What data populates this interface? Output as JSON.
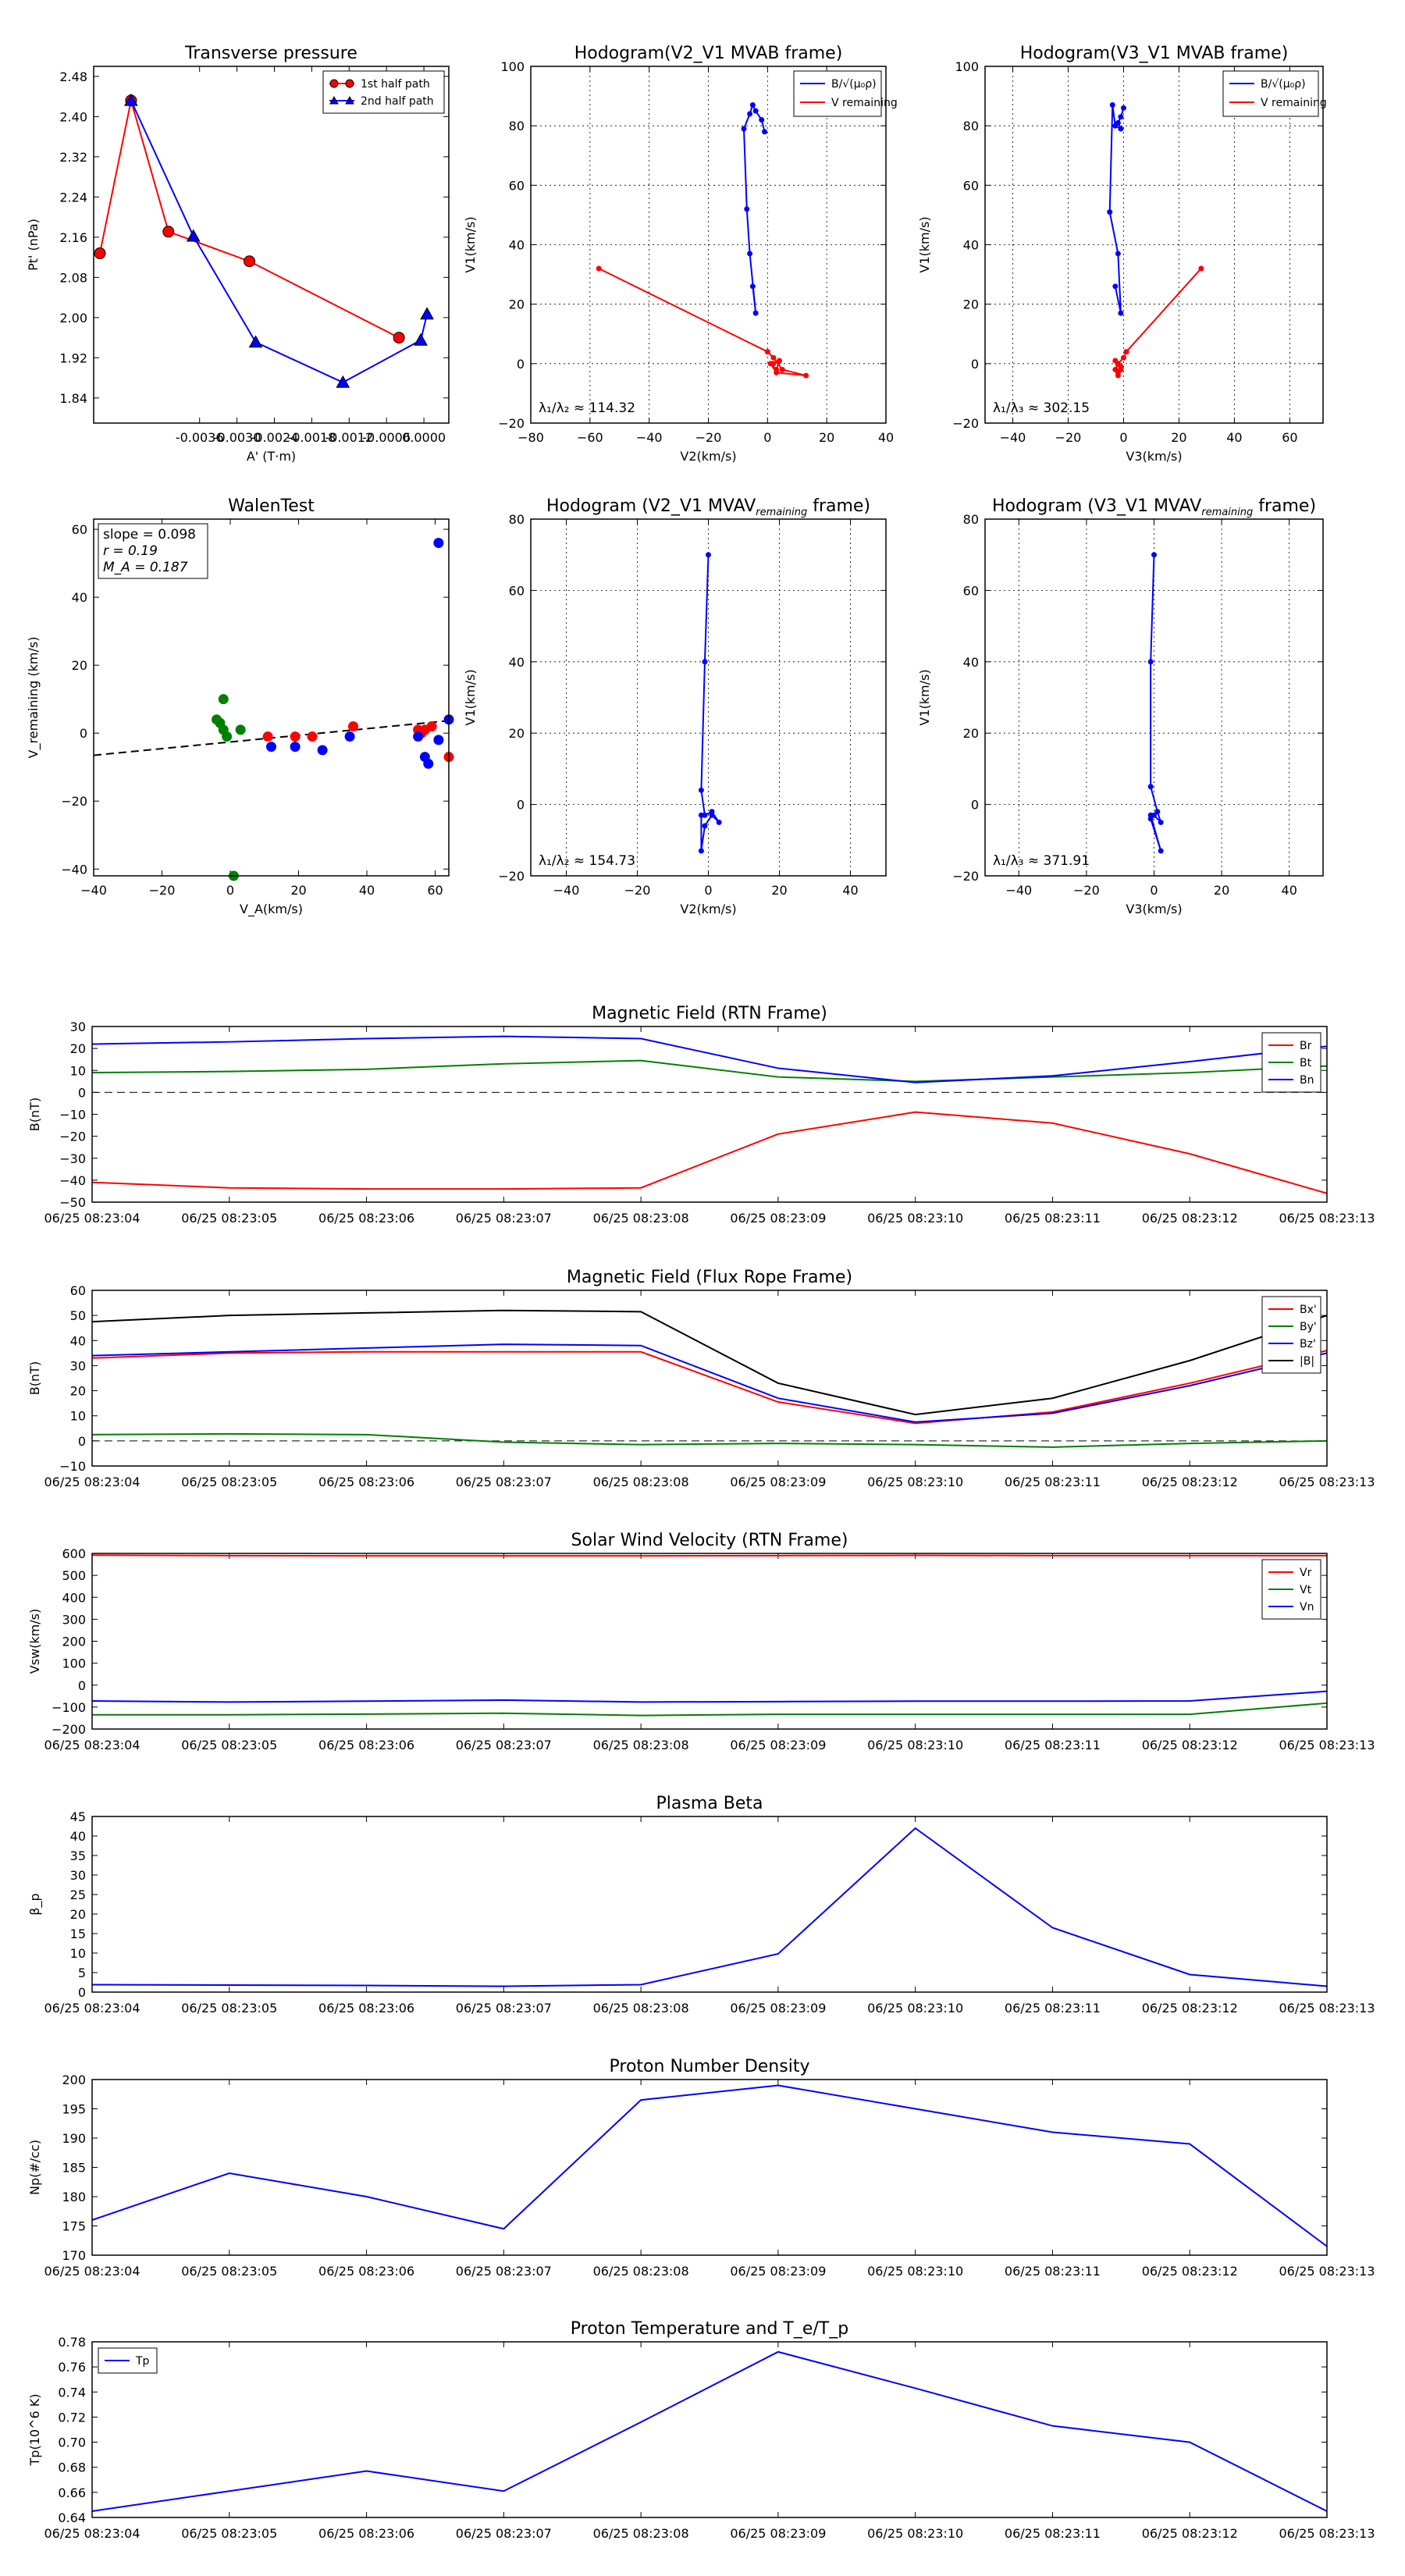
{
  "chart_data": [
    {
      "id": "transverse_pressure",
      "type": "line",
      "title": "Transverse pressure",
      "xlabel": "A' (T·m)",
      "ylabel": "Pt' (nPa)",
      "xlim": [
        -0.0053,
        0.0004
      ],
      "ylim": [
        1.79,
        2.5
      ],
      "xticks": [
        -0.0036,
        -0.003,
        -0.0024,
        -0.0018,
        -0.0012,
        -0.0006,
        0.0
      ],
      "xtick_labels": [
        "-0.0036",
        "-0.0030",
        "-0.0024",
        "-0.0018",
        "-0.0012",
        "-0.0006",
        "0.0000"
      ],
      "yticks": [
        1.84,
        1.92,
        2.0,
        2.08,
        2.16,
        2.24,
        2.32,
        2.4,
        2.48
      ],
      "ytick_labels": [
        "1.84",
        "1.92",
        "2.00",
        "2.08",
        "2.16",
        "2.24",
        "2.32",
        "2.40",
        "2.48"
      ],
      "legend": "top-right",
      "series": [
        {
          "name": "1st half path",
          "color": "#ff0000",
          "marker": "circle",
          "x": [
            -0.0052,
            -0.0047,
            -0.0041,
            -0.0028,
            -0.0004
          ],
          "y": [
            2.128,
            2.432,
            2.171,
            2.112,
            1.96
          ]
        },
        {
          "name": "2nd half path",
          "color": "#0000ff",
          "marker": "triangle",
          "x": [
            -0.0047,
            -0.0037,
            -0.0027,
            -0.0013,
            -5e-05,
            5e-05
          ],
          "y": [
            2.432,
            2.162,
            1.951,
            1.871,
            1.955,
            2.007
          ]
        }
      ]
    },
    {
      "id": "hodogram_v2_v1_mvab",
      "type": "line",
      "title": "Hodogram(V2_V1 MVAB frame)",
      "xlabel": "V2(km/s)",
      "ylabel": "V1(km/s)",
      "xlim": [
        -80,
        40
      ],
      "ylim": [
        -20,
        100
      ],
      "xticks": [
        -80,
        -60,
        -40,
        -20,
        0,
        20,
        40
      ],
      "xtick_labels": [
        "−80",
        "−60",
        "−40",
        "−20",
        "0",
        "20",
        "40"
      ],
      "yticks": [
        -20,
        0,
        20,
        40,
        60,
        80,
        100
      ],
      "ytick_labels": [
        "−20",
        "0",
        "20",
        "40",
        "60",
        "80",
        "100"
      ],
      "grid": true,
      "legend": "top-right",
      "annotation": "λ₁/λ₂ ≈ 114.32",
      "series": [
        {
          "name": "B/√(μ₀ρ)",
          "color": "#0000ff",
          "x": [
            -1,
            -2,
            -4,
            -5,
            -6,
            -8,
            -7,
            -6,
            -4,
            -5
          ],
          "y": [
            78,
            82,
            85,
            87,
            84,
            79,
            52,
            37,
            17,
            26
          ]
        },
        {
          "name": "V remaining",
          "color": "#ff0000",
          "x": [
            -57,
            0,
            2,
            5,
            13,
            3,
            1,
            3,
            4,
            2
          ],
          "y": [
            32,
            4,
            2,
            -2,
            -4,
            -3,
            0,
            -2,
            1,
            0
          ]
        }
      ]
    },
    {
      "id": "hodogram_v3_v1_mvab",
      "type": "line",
      "title": "Hodogram(V3_V1 MVAB frame)",
      "xlabel": "V3(km/s)",
      "ylabel": "V1(km/s)",
      "xlim": [
        -50,
        72
      ],
      "ylim": [
        -20,
        100
      ],
      "xticks": [
        -40,
        -20,
        0,
        20,
        40,
        60
      ],
      "xtick_labels": [
        "−40",
        "−20",
        "0",
        "20",
        "40",
        "60"
      ],
      "yticks": [
        -20,
        0,
        20,
        40,
        60,
        80,
        100
      ],
      "ytick_labels": [
        "−20",
        "0",
        "20",
        "40",
        "60",
        "80",
        "100"
      ],
      "grid": true,
      "legend": "top-right",
      "annotation": "λ₁/λ₃ ≈ 302.15",
      "series": [
        {
          "name": "B/√(μ₀ρ)",
          "color": "#0000ff",
          "x": [
            0,
            -1,
            -2,
            -1,
            -3,
            -4,
            -5,
            -2,
            -1,
            -3
          ],
          "y": [
            86,
            83,
            81,
            79,
            80,
            87,
            51,
            37,
            17,
            26
          ]
        },
        {
          "name": "V remaining",
          "color": "#ff0000",
          "x": [
            28,
            1,
            0,
            -2,
            -3,
            -2,
            -1,
            -2,
            -3,
            -1
          ],
          "y": [
            32,
            4,
            2,
            0,
            -2,
            -4,
            -2,
            -3,
            1,
            -1
          ]
        }
      ]
    },
    {
      "id": "walen_test",
      "type": "scatter",
      "title": "WalenTest",
      "xlabel": "V_A(km/s)",
      "ylabel": "V_remaining (km/s)",
      "xlim": [
        -40,
        64
      ],
      "ylim": [
        -42,
        63
      ],
      "xticks": [
        -40,
        -20,
        0,
        20,
        40,
        60
      ],
      "xtick_labels": [
        "−40",
        "−20",
        "0",
        "20",
        "40",
        "60"
      ],
      "yticks": [
        -40,
        -20,
        0,
        20,
        40,
        60
      ],
      "ytick_labels": [
        "−40",
        "−20",
        "0",
        "20",
        "40",
        "60"
      ],
      "annotation_lines": [
        "slope = 0.098",
        "r = 0.19",
        "M_A = 0.187"
      ],
      "fit_line": {
        "slope": 0.098,
        "intercept": -2.6,
        "style": "dashed",
        "color": "#000000"
      },
      "series": [
        {
          "name": "green",
          "color": "#008000",
          "x": [
            -2,
            -4,
            -3,
            -2,
            3,
            -1,
            1
          ],
          "y": [
            10,
            4,
            3,
            1,
            1,
            -1,
            -42
          ]
        },
        {
          "name": "red",
          "color": "#ff0000",
          "x": [
            11,
            19,
            24,
            36,
            55,
            57,
            59,
            56,
            64
          ],
          "y": [
            -1,
            -1,
            -1,
            2,
            1,
            1,
            2,
            0,
            -7
          ]
        },
        {
          "name": "blue",
          "color": "#0000ff",
          "x": [
            12,
            19,
            27,
            35,
            55,
            57,
            58,
            61,
            61,
            64
          ],
          "y": [
            -4,
            -4,
            -5,
            -1,
            -1,
            -7,
            -9,
            -2,
            56,
            4
          ]
        }
      ]
    },
    {
      "id": "hodogram_v2_v1_mvav",
      "type": "line",
      "title": "Hodogram (V2_V1 MVAV",
      "title_sub": "remaining",
      "title_end": " frame)",
      "xlabel": "V2(km/s)",
      "ylabel": "V1(km/s)",
      "xlim": [
        -50,
        50
      ],
      "ylim": [
        -20,
        80
      ],
      "xticks": [
        -40,
        -20,
        0,
        20,
        40
      ],
      "xtick_labels": [
        "−40",
        "−20",
        "0",
        "20",
        "40"
      ],
      "yticks": [
        -20,
        0,
        20,
        40,
        60,
        80
      ],
      "ytick_labels": [
        "−20",
        "0",
        "20",
        "40",
        "60",
        "80"
      ],
      "grid": true,
      "annotation": "λ₁/λ₂ ≈ 154.73",
      "series": [
        {
          "name": "trace",
          "color": "#0000ff",
          "x": [
            0,
            -1,
            -2,
            -1,
            1,
            3,
            1,
            -1,
            -2,
            -2
          ],
          "y": [
            70,
            40,
            4,
            -3,
            -2,
            -5,
            -3,
            -6,
            -13,
            -3
          ]
        }
      ]
    },
    {
      "id": "hodogram_v3_v1_mvav",
      "type": "line",
      "title": "Hodogram (V3_V1 MVAV",
      "title_sub": "remaining",
      "title_end": " frame)",
      "xlabel": "V3(km/s)",
      "ylabel": "V1(km/s)",
      "xlim": [
        -50,
        50
      ],
      "ylim": [
        -20,
        80
      ],
      "xticks": [
        -40,
        -20,
        0,
        20,
        40
      ],
      "xtick_labels": [
        "−40",
        "−20",
        "0",
        "20",
        "40"
      ],
      "yticks": [
        -20,
        0,
        20,
        40,
        60,
        80
      ],
      "ytick_labels": [
        "−20",
        "0",
        "20",
        "40",
        "60",
        "80"
      ],
      "grid": true,
      "annotation": "λ₁/λ₃ ≈ 371.91",
      "series": [
        {
          "name": "trace",
          "color": "#0000ff",
          "x": [
            0,
            -1,
            -1,
            1,
            2,
            0,
            -1,
            2,
            -1
          ],
          "y": [
            70,
            40,
            5,
            -2,
            -5,
            -3,
            -4,
            -13,
            -3
          ]
        }
      ]
    },
    {
      "id": "magnetic_field_rtn",
      "type": "line",
      "title": "Magnetic Field (RTN Frame)",
      "ylabel": "B(nT)",
      "categories": [
        "06/25 08:23:04",
        "06/25 08:23:05",
        "06/25 08:23:06",
        "06/25 08:23:07",
        "06/25 08:23:08",
        "06/25 08:23:09",
        "06/25 08:23:10",
        "06/25 08:23:11",
        "06/25 08:23:12",
        "06/25 08:23:13"
      ],
      "ylim": [
        -50,
        30
      ],
      "yticks": [
        -50,
        -40,
        -30,
        -20,
        -10,
        0,
        10,
        20,
        30
      ],
      "ytick_labels": [
        "−50",
        "−40",
        "−30",
        "−20",
        "−10",
        "0",
        "10",
        "20",
        "30"
      ],
      "zero_line": true,
      "legend": "top-right",
      "series": [
        {
          "name": "Br",
          "color": "#ff0000",
          "values": [
            -41,
            -43.5,
            -44,
            -44,
            -43.5,
            -19,
            -9,
            -14,
            -28,
            -46
          ]
        },
        {
          "name": "Bt",
          "color": "#008000",
          "values": [
            9,
            9.5,
            10.5,
            13,
            14.5,
            7,
            5,
            7,
            9,
            12
          ]
        },
        {
          "name": "Bn",
          "color": "#0000ff",
          "values": [
            22,
            23,
            24.5,
            25.5,
            24.5,
            11,
            4.5,
            7.5,
            14,
            21
          ]
        }
      ]
    },
    {
      "id": "magnetic_field_flux_rope",
      "type": "line",
      "title": "Magnetic Field (Flux Rope Frame)",
      "ylabel": "B(nT)",
      "categories": [
        "06/25 08:23:04",
        "06/25 08:23:05",
        "06/25 08:23:06",
        "06/25 08:23:07",
        "06/25 08:23:08",
        "06/25 08:23:09",
        "06/25 08:23:10",
        "06/25 08:23:11",
        "06/25 08:23:12",
        "06/25 08:23:13"
      ],
      "ylim": [
        -10,
        60
      ],
      "yticks": [
        -10,
        0,
        10,
        20,
        30,
        40,
        50,
        60
      ],
      "ytick_labels": [
        "−10",
        "0",
        "10",
        "20",
        "30",
        "40",
        "50",
        "60"
      ],
      "zero_line": true,
      "legend": "top-right",
      "series": [
        {
          "name": "Bx'",
          "color": "#ff0000",
          "values": [
            33,
            35,
            35.5,
            35.5,
            35.5,
            15.5,
            7,
            11.5,
            23,
            36
          ]
        },
        {
          "name": "By'",
          "color": "#008000",
          "values": [
            2.5,
            2.8,
            2.5,
            -0.5,
            -1.5,
            -1,
            -1.5,
            -2.5,
            -1,
            0
          ]
        },
        {
          "name": "Bz'",
          "color": "#0000ff",
          "values": [
            34,
            35.5,
            37,
            38.5,
            38,
            17,
            7.5,
            11,
            22,
            35
          ]
        },
        {
          "name": "|B|",
          "color": "#000000",
          "values": [
            47.5,
            50,
            51,
            52,
            51.5,
            23,
            10.5,
            17,
            32,
            50
          ]
        }
      ]
    },
    {
      "id": "solar_wind_velocity",
      "type": "line",
      "title": "Solar Wind Velocity (RTN Frame)",
      "ylabel": "Vsw(km/s)",
      "categories": [
        "06/25 08:23:04",
        "06/25 08:23:05",
        "06/25 08:23:06",
        "06/25 08:23:07",
        "06/25 08:23:08",
        "06/25 08:23:09",
        "06/25 08:23:10",
        "06/25 08:23:11",
        "06/25 08:23:12",
        "06/25 08:23:13"
      ],
      "ylim": [
        -200,
        600
      ],
      "yticks": [
        -200,
        -100,
        0,
        100,
        200,
        300,
        400,
        500,
        600
      ],
      "ytick_labels": [
        "−200",
        "−100",
        "0",
        "100",
        "200",
        "300",
        "400",
        "500",
        "600"
      ],
      "legend": "top-right",
      "series": [
        {
          "name": "Vr",
          "color": "#ff0000",
          "values": [
            592,
            590,
            589,
            589,
            589,
            590,
            591,
            590,
            590,
            590
          ]
        },
        {
          "name": "Vt",
          "color": "#008000",
          "values": [
            -135,
            -135,
            -132,
            -128,
            -138,
            -133,
            -133,
            -133,
            -133,
            -82
          ]
        },
        {
          "name": "Vn",
          "color": "#0000ff",
          "values": [
            -72,
            -77,
            -73,
            -68,
            -77,
            -75,
            -73,
            -73,
            -72,
            -28
          ]
        }
      ]
    },
    {
      "id": "plasma_beta",
      "type": "line",
      "title": "Plasma Beta",
      "ylabel": "β_p",
      "categories": [
        "06/25 08:23:04",
        "06/25 08:23:05",
        "06/25 08:23:06",
        "06/25 08:23:07",
        "06/25 08:23:08",
        "06/25 08:23:09",
        "06/25 08:23:10",
        "06/25 08:23:11",
        "06/25 08:23:12",
        "06/25 08:23:13"
      ],
      "ylim": [
        0,
        45
      ],
      "yticks": [
        0,
        5,
        10,
        15,
        20,
        25,
        30,
        35,
        40,
        45
      ],
      "ytick_labels": [
        "0",
        "5",
        "10",
        "15",
        "20",
        "25",
        "30",
        "35",
        "40",
        "45"
      ],
      "series": [
        {
          "name": "beta",
          "color": "#0000ff",
          "values": [
            1.9,
            1.8,
            1.7,
            1.5,
            1.9,
            9.8,
            42,
            16.5,
            4.5,
            1.5
          ]
        }
      ]
    },
    {
      "id": "proton_number_density",
      "type": "line",
      "title": "Proton Number Density",
      "ylabel": "Np(#/cc)",
      "categories": [
        "06/25 08:23:04",
        "06/25 08:23:05",
        "06/25 08:23:06",
        "06/25 08:23:07",
        "06/25 08:23:08",
        "06/25 08:23:09",
        "06/25 08:23:10",
        "06/25 08:23:11",
        "06/25 08:23:12",
        "06/25 08:23:13"
      ],
      "ylim": [
        170,
        200
      ],
      "yticks": [
        170,
        175,
        180,
        185,
        190,
        195,
        200
      ],
      "ytick_labels": [
        "170",
        "175",
        "180",
        "185",
        "190",
        "195",
        "200"
      ],
      "series": [
        {
          "name": "Np",
          "color": "#0000ff",
          "values": [
            176,
            184,
            180,
            174.5,
            196.5,
            199,
            195,
            191,
            189,
            171.5
          ]
        }
      ]
    },
    {
      "id": "proton_temperature",
      "type": "line",
      "title": "Proton Temperature and T_e/T_p",
      "ylabel": "Tp(10^6 K)",
      "categories": [
        "06/25 08:23:04",
        "06/25 08:23:05",
        "06/25 08:23:06",
        "06/25 08:23:07",
        "06/25 08:23:08",
        "06/25 08:23:09",
        "06/25 08:23:10",
        "06/25 08:23:11",
        "06/25 08:23:12",
        "06/25 08:23:13"
      ],
      "ylim": [
        0.64,
        0.78
      ],
      "yticks": [
        0.64,
        0.66,
        0.68,
        0.7,
        0.72,
        0.74,
        0.76,
        0.78
      ],
      "ytick_labels": [
        "0.64",
        "0.66",
        "0.68",
        "0.70",
        "0.72",
        "0.74",
        "0.76",
        "0.78"
      ],
      "legend": "top-left",
      "series": [
        {
          "name": "Tp",
          "color": "#0000ff",
          "values": [
            0.645,
            0.661,
            0.677,
            0.661,
            0.716,
            0.772,
            0.743,
            0.713,
            0.7,
            0.645
          ]
        }
      ]
    }
  ]
}
